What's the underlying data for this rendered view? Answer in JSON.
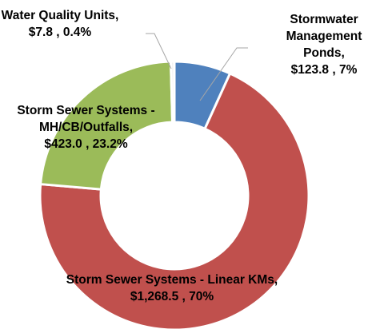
{
  "chart_data": {
    "type": "donut",
    "categories": [
      "Stormwater Management Ponds,",
      "Storm Sewer Systems - Linear KMs,",
      "Storm Sewer Systems - MH/CB/Outfalls,",
      "Water Quality Units,"
    ],
    "values": [
      123.8,
      1268.5,
      423.0,
      7.8
    ],
    "value_labels": [
      "$123.8 , 7%",
      "$1,268.5 , 70%",
      "$423.0 , 23.2%",
      "$7.8 , 0.4%"
    ],
    "colors": [
      "#4f81bd",
      "#c0504d",
      "#9bbb59",
      "#f2f2f2"
    ]
  }
}
